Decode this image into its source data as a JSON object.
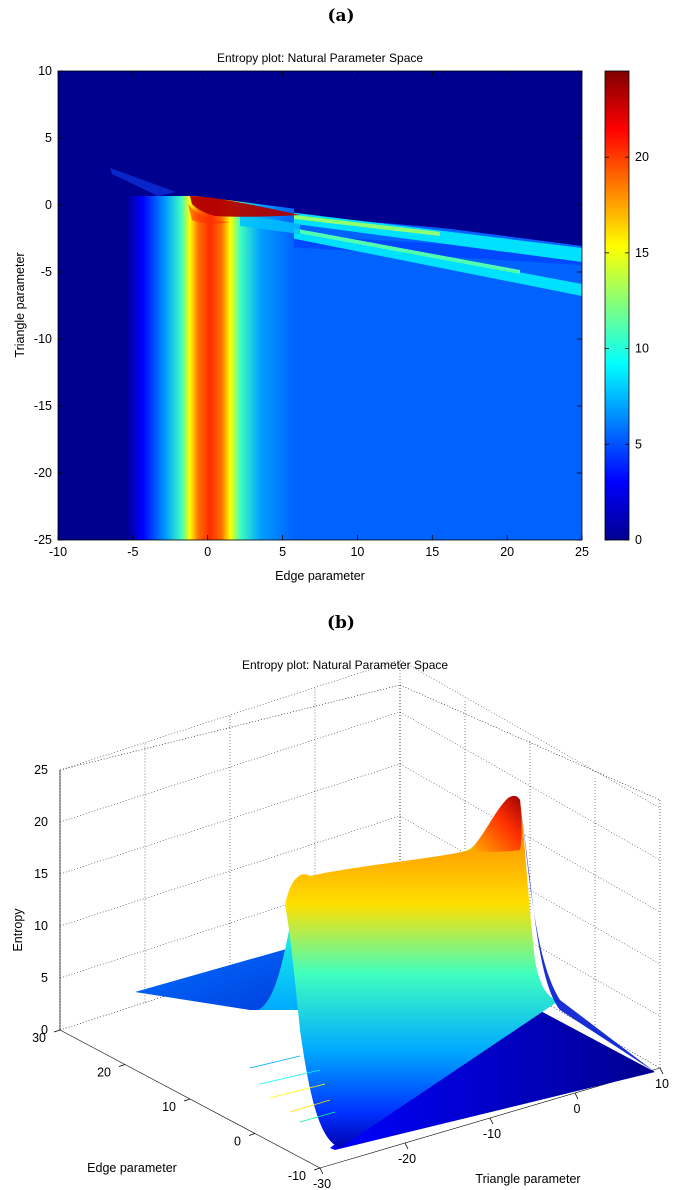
{
  "panel_a_label": "(a)",
  "panel_b_label": "(b)",
  "colors": {
    "jet": [
      "#00008f",
      "#0000ff",
      "#00ffff",
      "#ffff00",
      "#ff0000",
      "#800000"
    ],
    "background": "#00008f"
  },
  "chart_data": [
    {
      "type": "heatmap",
      "title": "Entropy plot: Natural Parameter Space",
      "xlabel": "Edge parameter",
      "ylabel": "Triangle parameter",
      "xlim": [
        -10,
        25
      ],
      "ylim": [
        -25,
        10
      ],
      "xticks": [
        -10,
        -5,
        0,
        5,
        10,
        15,
        20,
        25
      ],
      "yticks": [
        10,
        5,
        0,
        -5,
        -10,
        -15,
        -20,
        -25
      ],
      "colorbar": {
        "range": [
          0,
          24.5
        ],
        "ticks": [
          0,
          5,
          10,
          15,
          20
        ]
      },
      "colormap": "jet",
      "features": {
        "vertical_ridge_center_x": 0,
        "vertical_ridge_peak_value": 21,
        "plateau_value_right_of_ridge": 4.5,
        "zero_region": "x < -5 or above the sloped boundary line",
        "boundary_line": {
          "from": [
            -6.5,
            2.5
          ],
          "to": [
            25,
            -3.2
          ]
        },
        "diagonal_ridges": [
          {
            "from": [
              -1,
              0.5
            ],
            "to": [
              25,
              -4.3
            ],
            "value": 10
          },
          {
            "from": [
              2,
              -1.5
            ],
            "to": [
              25,
              -6.3
            ],
            "value": 9
          }
        ],
        "max_value_location": [
          0,
          0
        ],
        "max_value": 24.5
      }
    },
    {
      "type": "surface",
      "title": "Entropy plot: Natural Parameter Space",
      "xlabel": "Edge parameter",
      "ylabel": "Triangle parameter",
      "zlabel": "Entropy",
      "edge_ticks": [
        30,
        20,
        10,
        0,
        -10
      ],
      "triangle_ticks": [
        -30,
        -20,
        -10,
        0,
        10
      ],
      "zticks": [
        0,
        5,
        10,
        15,
        20,
        25
      ],
      "zlim": [
        0,
        25
      ],
      "colormap": "jet",
      "features": {
        "ridge_along_triangle_axis_peak": 21,
        "ridge_near_edge_parameter": 0,
        "max_near_triangle_parameter": 0,
        "max_value": 24.5,
        "plateau_value": 4.5
      }
    }
  ]
}
